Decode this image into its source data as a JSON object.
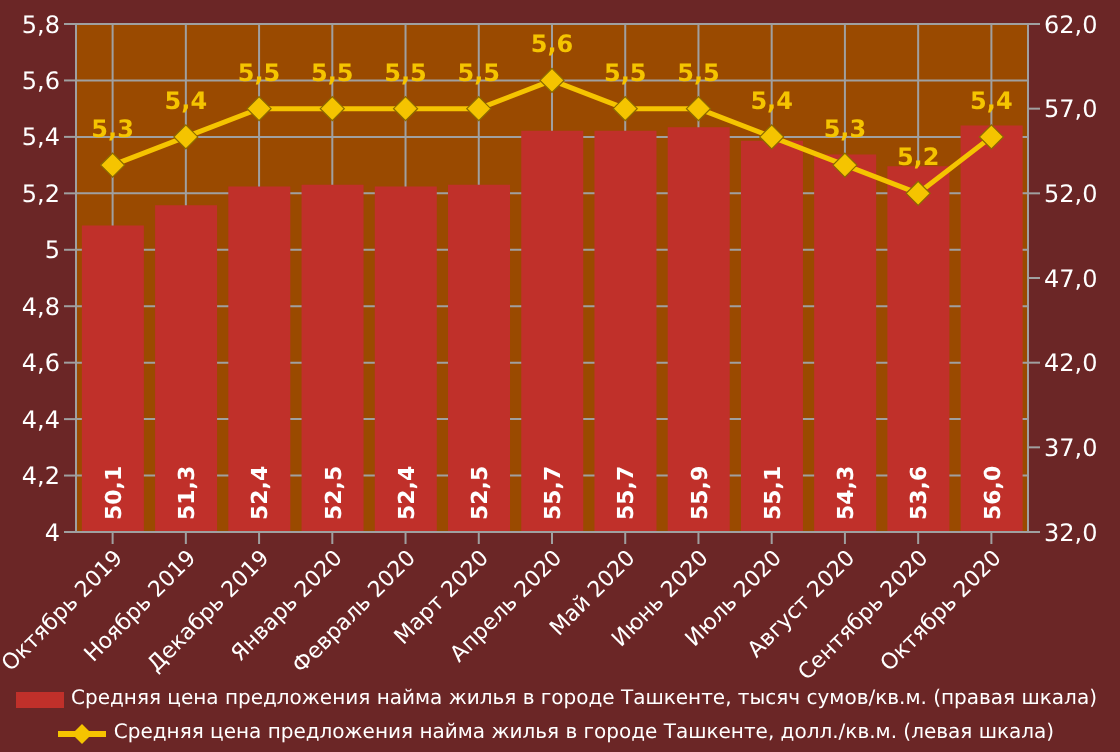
{
  "chart_data": {
    "type": "bar",
    "categories": [
      "Октябрь 2019",
      "Ноябрь 2019",
      "Декабрь 2019",
      "Январь 2020",
      "Февраль 2020",
      "Март 2020",
      "Апрель 2020",
      "Май 2020",
      "Июнь 2020",
      "Июль 2020",
      "Август 2020",
      "Сентябрь 2020",
      "Октябрь 2020"
    ],
    "series": [
      {
        "name": "Средняя цена предложения найма жилья в городе Ташкенте, тысяч сумов/кв.м. (правая шкала)",
        "axis": "y2",
        "color": "#c0302a",
        "values": [
          50.1,
          51.3,
          52.4,
          52.5,
          52.4,
          52.5,
          55.7,
          55.7,
          55.9,
          55.1,
          54.3,
          53.6,
          56.0
        ],
        "value_labels": [
          "50,1",
          "51,3",
          "52,4",
          "52,5",
          "52,4",
          "52,5",
          "55,7",
          "55,7",
          "55,9",
          "55,1",
          "54,3",
          "53,6",
          "56,0"
        ]
      },
      {
        "name": "Средняя цена предложения найма жилья в городе Ташкенте, долл./кв.м. (левая шкала)",
        "type": "line",
        "color": "#f5c400",
        "marker": "diamond",
        "values": [
          5.3,
          5.4,
          5.5,
          5.5,
          5.5,
          5.5,
          5.6,
          5.5,
          5.5,
          5.4,
          5.3,
          5.2,
          5.4
        ],
        "value_labels": [
          "5,3",
          "5,4",
          "5,5",
          "5,5",
          "5,5",
          "5,5",
          "5,6",
          "5,5",
          "5,5",
          "5,4",
          "5,3",
          "5,2",
          "5,4"
        ]
      }
    ],
    "ylim": [
      4,
      5.8
    ],
    "yticks": [
      {
        "value": 4,
        "label": "4"
      },
      {
        "value": 4.2,
        "label": "4,2"
      },
      {
        "value": 4.4,
        "label": "4,4"
      },
      {
        "value": 4.6,
        "label": "4,6"
      },
      {
        "value": 4.8,
        "label": "4,8"
      },
      {
        "value": 5,
        "label": "5"
      },
      {
        "value": 5.2,
        "label": "5,2"
      },
      {
        "value": 5.4,
        "label": "5,4"
      },
      {
        "value": 5.6,
        "label": "5,6"
      },
      {
        "value": 5.8,
        "label": "5,8"
      }
    ],
    "y2lim": [
      32,
      62
    ],
    "y2ticks": [
      {
        "value": 32,
        "label": "32,0"
      },
      {
        "value": 37,
        "label": "37,0"
      },
      {
        "value": 42,
        "label": "42,0"
      },
      {
        "value": 47,
        "label": "47,0"
      },
      {
        "value": 52,
        "label": "52,0"
      },
      {
        "value": 57,
        "label": "57,0"
      },
      {
        "value": 62,
        "label": "62,0"
      }
    ],
    "grid": true,
    "legend": "bottom"
  }
}
